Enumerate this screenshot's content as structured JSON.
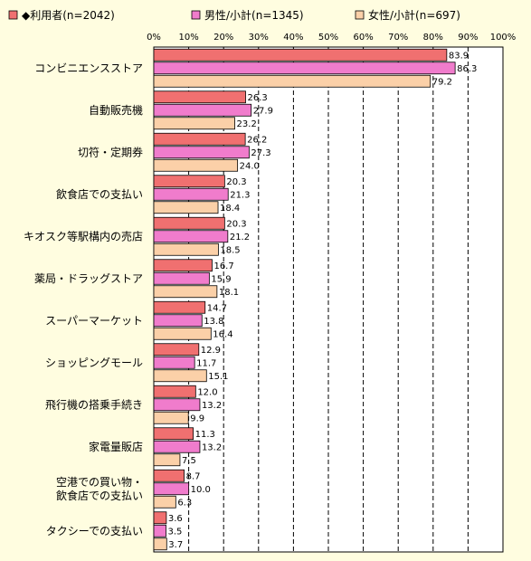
{
  "chart_data": {
    "type": "bar",
    "orientation": "horizontal",
    "xlim": [
      0,
      100
    ],
    "x_ticks": [
      "0%",
      "10%",
      "20%",
      "30%",
      "40%",
      "50%",
      "60%",
      "70%",
      "80%",
      "90%",
      "100%"
    ],
    "grid": "vertical dashed",
    "legend_position": "top",
    "categories": [
      [
        "コンビニエンスストア"
      ],
      [
        "自動販売機"
      ],
      [
        "切符・定期券"
      ],
      [
        "飲食店での支払い"
      ],
      [
        "キオスク等駅構内の売店"
      ],
      [
        "薬局・ドラッグストア"
      ],
      [
        "スーパーマーケット"
      ],
      [
        "ショッピングモール"
      ],
      [
        "飛行機の搭乗手続き"
      ],
      [
        "家電量販店"
      ],
      [
        "空港での買い物・",
        "飲食店での支払い"
      ],
      [
        "タクシーでの支払い"
      ]
    ],
    "series": [
      {
        "name": "◆利用者(n=2042)",
        "color": "#f07070",
        "values": [
          83.9,
          26.3,
          26.2,
          20.3,
          20.3,
          16.7,
          14.7,
          12.9,
          12.0,
          11.3,
          8.7,
          3.6
        ],
        "labels": [
          "83.9",
          "26.3",
          "26.2",
          "20.3",
          "20.3",
          "16.7",
          "14.7",
          "12.9",
          "12.0",
          "11.3",
          "8.7",
          "3.6"
        ]
      },
      {
        "name": "男性/小計(n=1345)",
        "color": "#f07ccc",
        "values": [
          86.3,
          27.9,
          27.3,
          21.3,
          21.2,
          15.9,
          13.8,
          11.7,
          13.2,
          13.2,
          10.0,
          3.5
        ],
        "labels": [
          "86.3",
          "27.9",
          "27.3",
          "21.3",
          "21.2",
          "15.9",
          "13.8",
          "11.7",
          "13.2",
          "13.2",
          "10.0",
          "3.5"
        ]
      },
      {
        "name": "女性/小計(n=697)",
        "color": "#fbd0a8",
        "values": [
          79.2,
          23.2,
          24.0,
          18.4,
          18.5,
          18.1,
          16.4,
          15.1,
          9.9,
          7.5,
          6.3,
          3.7
        ],
        "labels": [
          "79.2",
          "23.2",
          "24.0",
          "18.4",
          "18.5",
          "18.1",
          "16.4",
          "15.1",
          "9.9",
          "7.5",
          "6.3",
          "3.7"
        ]
      }
    ]
  }
}
